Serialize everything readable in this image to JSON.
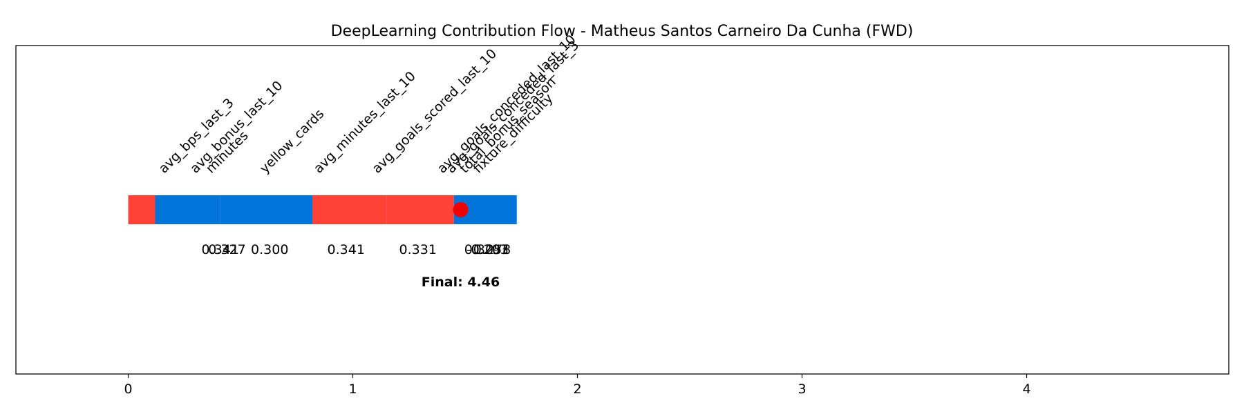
{
  "chart_data": {
    "type": "bar",
    "title": "DeepLearning Contribution Flow - Matheus Santos Carneiro Da Cunha (FWD)",
    "xlabel": "",
    "ylabel": "",
    "xlim": [
      -0.5,
      4.9
    ],
    "x_ticks": [
      0,
      1,
      2,
      3,
      4
    ],
    "grid": false,
    "features": [
      {
        "name": "avg_bps_last_3",
        "start": 0.0,
        "end": 0.12,
        "value_label": "",
        "color": "#ff4136"
      },
      {
        "name": "avg_bonus_last_10",
        "start": 0.12,
        "end": 0.24,
        "value_label": "0.341",
        "color": "#0074d9"
      },
      {
        "name": "minutes",
        "start": 0.24,
        "end": 0.41,
        "value_label": "0.327",
        "color": "#0074d9"
      },
      {
        "name": "yellow_cards",
        "start": 0.41,
        "end": 0.58,
        "value_label": "0.300",
        "color": "#0074d9"
      },
      {
        "name": "avg_minutes_last_10",
        "start": 0.58,
        "end": 0.82,
        "value_label": "0.341",
        "color": "#0074d9"
      },
      {
        "name": "avg_goals_scored_last_10",
        "start": 0.82,
        "end": 1.15,
        "value_label": "0.331",
        "color": "#ff4136"
      },
      {
        "name": "avg_goals_conceded_last_10",
        "start": 1.15,
        "end": 1.45,
        "value_label": "0.305",
        "color": "#ff4136"
      },
      {
        "name": "avg_goals_conceded_last_3",
        "start": 1.45,
        "end": 1.52,
        "value_label": "-0.207",
        "color": "#0074d9"
      },
      {
        "name": "total_bonus_season",
        "start": 1.52,
        "end": 1.62,
        "value_label": "0.293",
        "color": "#0074d9"
      },
      {
        "name": "fixture_difficulty",
        "start": 1.62,
        "end": 1.73,
        "value_label": "0.278",
        "color": "#0074d9"
      }
    ],
    "feature_label_x": [
      0.16,
      0.3,
      0.37,
      0.61,
      0.85,
      1.11,
      1.4,
      1.44,
      1.5,
      1.56
    ],
    "value_label_x": [
      0.31,
      0.41,
      0.44,
      0.63,
      0.97,
      1.29,
      1.58,
      1.6,
      1.61,
      1.62
    ],
    "final_marker_x": 1.48,
    "final_label_x": 1.48,
    "final_label": "Final: 4.46",
    "marker_color": "#ee0000"
  }
}
